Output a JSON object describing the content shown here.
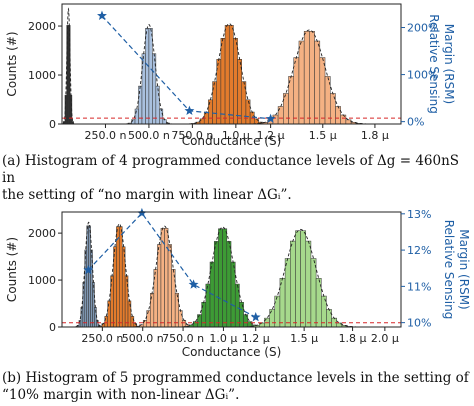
{
  "captions": {
    "a": {
      "line1": "(a) Histogram of 4 programmed conductance levels of Δg = 460nS in",
      "line2": "the setting of “no margin with linear ΔGᵢ”."
    },
    "b": {
      "line1": "(b) Histogram of 5 programmed conductance levels in the setting of",
      "line2": "“10% margin with non-linear ΔGᵢ”."
    }
  },
  "colors": {
    "rsm": "#1f5fa5",
    "threshold": "#d62728",
    "fit": "#222222",
    "bar_edge": "#333333"
  },
  "chart_data": [
    {
      "id": "a",
      "type": "bar",
      "title": "",
      "xlabel": "Conductance (S)",
      "ylabel": "Counts (#)",
      "y2label_line1": "Relative Sensing",
      "y2label_line2": "Margin (RSM)",
      "xlim": [
        0,
        1.95e-06
      ],
      "ylim": [
        0,
        2450
      ],
      "y2lim": [
        -0.05,
        2.5
      ],
      "xticks": [
        {
          "v": 2.5e-07,
          "label": "250.0 n"
        },
        {
          "v": 5e-07,
          "label": "500.0 n"
        },
        {
          "v": 7.5e-07,
          "label": "750.0 n"
        },
        {
          "v": 1e-06,
          "label": "1.0 μ"
        },
        {
          "v": 1.2e-06,
          "label": "1.2 μ"
        },
        {
          "v": 1.5e-06,
          "label": "1.5 μ"
        },
        {
          "v": 1.8e-06,
          "label": "1.8 μ"
        }
      ],
      "yticks": [
        {
          "v": 0,
          "label": "0"
        },
        {
          "v": 1000,
          "label": "1000"
        },
        {
          "v": 2000,
          "label": "2000"
        }
      ],
      "y2ticks": [
        {
          "v": 0,
          "label": "0%"
        },
        {
          "v": 1,
          "label": "100%"
        },
        {
          "v": 2,
          "label": "200%"
        }
      ],
      "threshold_y": 120,
      "grid": false,
      "levels": [
        {
          "color": "#2e2e2e",
          "mu": 3.7e-08,
          "sigma": 9e-09,
          "peak": 2350,
          "bin": 1e-08
        },
        {
          "color": "#a9c0de",
          "mu": 5e-07,
          "sigma": 3.6e-08,
          "peak": 2030,
          "bin": 2e-08
        },
        {
          "color": "#e27b2c",
          "mu": 9.62e-07,
          "sigma": 6.4e-08,
          "peak": 2050,
          "bin": 2.4e-08
        },
        {
          "color": "#f4b183",
          "mu": 1.423e-06,
          "sigma": 9e-08,
          "peak": 1920,
          "bin": 3e-08
        }
      ],
      "rsm": {
        "x": [
          2.3e-07,
          7.33e-07,
          1.2e-06
        ],
        "y": [
          2.25,
          0.23,
          0.06
        ]
      }
    },
    {
      "id": "b",
      "type": "bar",
      "title": "",
      "xlabel": "Conductance (S)",
      "ylabel": "Counts (#)",
      "y2label_line1": "Relative Sensing",
      "y2label_line2": "Margin (RSM)",
      "xlim": [
        0,
        2.1e-06
      ],
      "ylim": [
        0,
        2450
      ],
      "y2lim": [
        0.0988,
        0.1305
      ],
      "xticks": [
        {
          "v": 2.5e-07,
          "label": "250.0 n"
        },
        {
          "v": 5e-07,
          "label": "500.0 n"
        },
        {
          "v": 7.5e-07,
          "label": "750.0 n"
        },
        {
          "v": 1e-06,
          "label": "1.0 μ"
        },
        {
          "v": 1.2e-06,
          "label": "1.2 μ"
        },
        {
          "v": 1.5e-06,
          "label": "1.5 μ"
        },
        {
          "v": 1.8e-06,
          "label": "1.8 μ"
        },
        {
          "v": 2e-06,
          "label": "2.0 μ"
        }
      ],
      "yticks": [
        {
          "v": 0,
          "label": "0"
        },
        {
          "v": 1000,
          "label": "1000"
        },
        {
          "v": 2000,
          "label": "2000"
        }
      ],
      "y2ticks": [
        {
          "v": 0.1,
          "label": "10%"
        },
        {
          "v": 0.11,
          "label": "11%"
        },
        {
          "v": 0.12,
          "label": "12%"
        },
        {
          "v": 0.13,
          "label": "13%"
        }
      ],
      "threshold_y": 90,
      "grid": false,
      "levels": [
        {
          "color": "#7f97b2",
          "mu": 1.65e-07,
          "sigma": 2.3e-08,
          "peak": 2230,
          "bin": 1.2e-08
        },
        {
          "color": "#e27b2c",
          "mu": 3.55e-07,
          "sigma": 3.8e-08,
          "peak": 2200,
          "bin": 1.8e-08
        },
        {
          "color": "#f4b183",
          "mu": 6.35e-07,
          "sigma": 5.2e-08,
          "peak": 2150,
          "bin": 2.2e-08
        },
        {
          "color": "#3d9b35",
          "mu": 9.95e-07,
          "sigma": 7e-08,
          "peak": 2130,
          "bin": 2.6e-08
        },
        {
          "color": "#a6d98c",
          "mu": 1.478e-06,
          "sigma": 9.5e-08,
          "peak": 2080,
          "bin": 3.2e-08
        }
      ],
      "rsm": {
        "x": [
          1.63e-07,
          4.95e-07,
          8.15e-07,
          1.2e-06
        ],
        "y": [
          0.1145,
          0.1302,
          0.1105,
          0.1015
        ]
      }
    }
  ]
}
